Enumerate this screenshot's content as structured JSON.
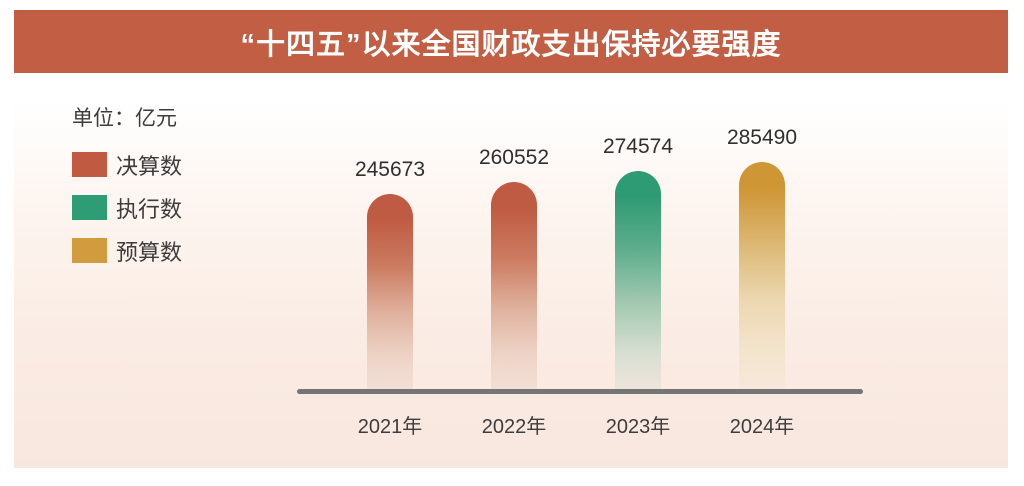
{
  "header": {
    "title": "“十四五”以来全国财政支出保持必要强度",
    "background_color": "#c15e44",
    "text_color": "#ffffff"
  },
  "chart_data": {
    "type": "bar",
    "title": "“十四五”以来全国财政支出保持必要强度",
    "unit_label": "单位：亿元",
    "categories": [
      "2021年",
      "2022年",
      "2023年",
      "2024年"
    ],
    "values": [
      245673,
      260552,
      274574,
      285490
    ],
    "bar_series": [
      "决算数",
      "决算数",
      "执行数",
      "预算数"
    ],
    "legend": [
      {
        "label": "决算数",
        "color": "#c05a41"
      },
      {
        "label": "执行数",
        "color": "#2e9c74"
      },
      {
        "label": "预算数",
        "color": "#d19c3d"
      }
    ],
    "legend_position": "left",
    "grid": false,
    "ylim": [
      0,
      300000
    ],
    "xlabel": "",
    "ylabel": "单位：亿元",
    "axis_line_color": "#757575",
    "bar_gradients": {
      "决算数": [
        "#bf5b42",
        "#cb7a60",
        "#dfb19d",
        "#edd3c6",
        "#f3e0d7"
      ],
      "执行数": [
        "#2f9b74",
        "#5fae8e",
        "#a3c9b1",
        "#d7ded1",
        "#efe5dc"
      ],
      "预算数": [
        "#cf9636",
        "#dcb874",
        "#ecd7b0",
        "#f3e4cd",
        "#f7e8dc"
      ]
    }
  }
}
